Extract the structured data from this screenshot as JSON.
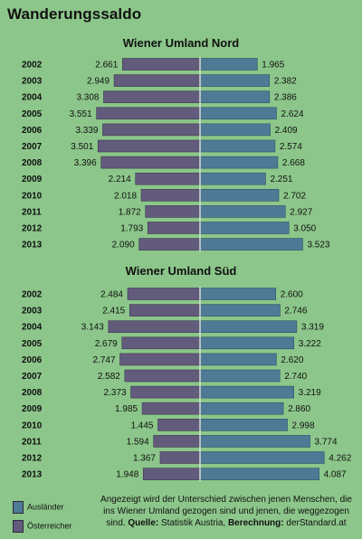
{
  "title": "Wanderungssaldo",
  "colors": {
    "background": "#8cc68a",
    "auslaender": "#4e7a96",
    "oesterreicher": "#625b7c",
    "divider": "#d8e6d6"
  },
  "legend": {
    "auslaender": "Ausländer",
    "oesterreicher": "Österreicher"
  },
  "note": {
    "text": "Angezeigt wird der Unterschied zwischen jenen Menschen, die ins Wiener Umland gezogen sind und jenen, die weggezogen sind.",
    "source_label": "Quelle:",
    "source": "Statistik Austria,",
    "calc_label": "Berechnung:",
    "calc": "derStandard.at"
  },
  "chart_data": [
    {
      "type": "bar",
      "title": "Wiener Umland Nord",
      "categories": [
        "2002",
        "2003",
        "2004",
        "2005",
        "2006",
        "2007",
        "2008",
        "2009",
        "2010",
        "2011",
        "2012",
        "2013"
      ],
      "series": [
        {
          "name": "Österreicher",
          "values": [
            2661,
            2949,
            3308,
            3551,
            3339,
            3501,
            3396,
            2214,
            2018,
            1872,
            1793,
            2090
          ],
          "labels": [
            "2.661",
            "2.949",
            "3.308",
            "3.551",
            "3.339",
            "3.501",
            "3.396",
            "2.214",
            "2.018",
            "1.872",
            "1.793",
            "2.090"
          ]
        },
        {
          "name": "Ausländer",
          "values": [
            1965,
            2382,
            2386,
            2624,
            2409,
            2574,
            2668,
            2251,
            2702,
            2927,
            3050,
            3523
          ],
          "labels": [
            "1.965",
            "2.382",
            "2.386",
            "2.624",
            "2.409",
            "2.574",
            "2.668",
            "2.251",
            "2.702",
            "2.927",
            "3.050",
            "3.523"
          ]
        }
      ]
    },
    {
      "type": "bar",
      "title": "Wiener Umland Süd",
      "categories": [
        "2002",
        "2003",
        "2004",
        "2005",
        "2006",
        "2007",
        "2008",
        "2009",
        "2010",
        "2011",
        "2012",
        "2013"
      ],
      "series": [
        {
          "name": "Österreicher",
          "values": [
            2484,
            2415,
            3143,
            2679,
            2747,
            2582,
            2373,
            1985,
            1445,
            1594,
            1367,
            1948
          ],
          "labels": [
            "2.484",
            "2.415",
            "3.143",
            "2.679",
            "2.747",
            "2.582",
            "2.373",
            "1.985",
            "1.445",
            "1.594",
            "1.367",
            "1.948"
          ]
        },
        {
          "name": "Ausländer",
          "values": [
            2600,
            2746,
            3319,
            3222,
            2620,
            2740,
            3219,
            2860,
            2998,
            3774,
            4262,
            4087
          ],
          "labels": [
            "2.600",
            "2.746",
            "3.319",
            "3.222",
            "2.620",
            "2.740",
            "3.219",
            "2.860",
            "2.998",
            "3.774",
            "4.262",
            "4.087"
          ]
        }
      ]
    }
  ]
}
